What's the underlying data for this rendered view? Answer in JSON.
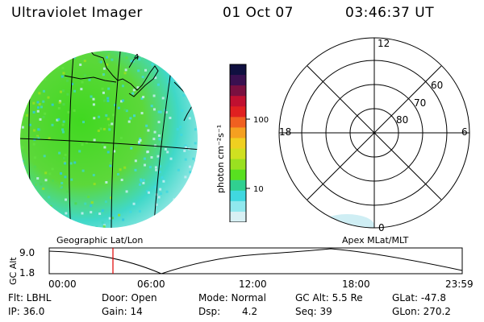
{
  "header": {
    "title": "Ultraviolet Imager",
    "date": "01 Oct 07",
    "time": "03:46:37 UT"
  },
  "left_map": {
    "label": "Geographic Lat/Lon",
    "grid_number": "4"
  },
  "colorbar": {
    "unit_label": "photon cm⁻²s⁻¹",
    "ticks": [
      "100",
      "10"
    ],
    "colors": [
      "#101040",
      "#3a1050",
      "#7a1040",
      "#c01030",
      "#e02020",
      "#f06020",
      "#f5a020",
      "#f0d020",
      "#d0e020",
      "#9ae020",
      "#58e020",
      "#30d090",
      "#40d8e0",
      "#90e8ee",
      "#d8f0f4"
    ]
  },
  "right_polar": {
    "label": "Apex MLat/MLT",
    "mlt": {
      "top": "12",
      "left": "18",
      "right": "6",
      "bottom": "0"
    },
    "lat_rings": [
      "60",
      "70",
      "80"
    ]
  },
  "timeline": {
    "axis_label": "GC Alt",
    "y_max": "9.0",
    "y_min": "1.8",
    "x_ticks": [
      "00:00",
      "06:00",
      "12:00",
      "18:00",
      "23:59"
    ],
    "current_marker_color": "#e00000"
  },
  "status": {
    "flt": "Flt: LBHL",
    "ip": "IP: 36.0",
    "door": "Door: Open",
    "gain": "Gain: 14",
    "mode": "Mode: Normal",
    "dsp_label": "Dsp:",
    "dsp_value": "4.2",
    "gc_alt": "GC Alt: 5.5 Re",
    "seq": "Seq: 39",
    "glat": "GLat: -47.8",
    "glon": "GLon: 270.2"
  }
}
